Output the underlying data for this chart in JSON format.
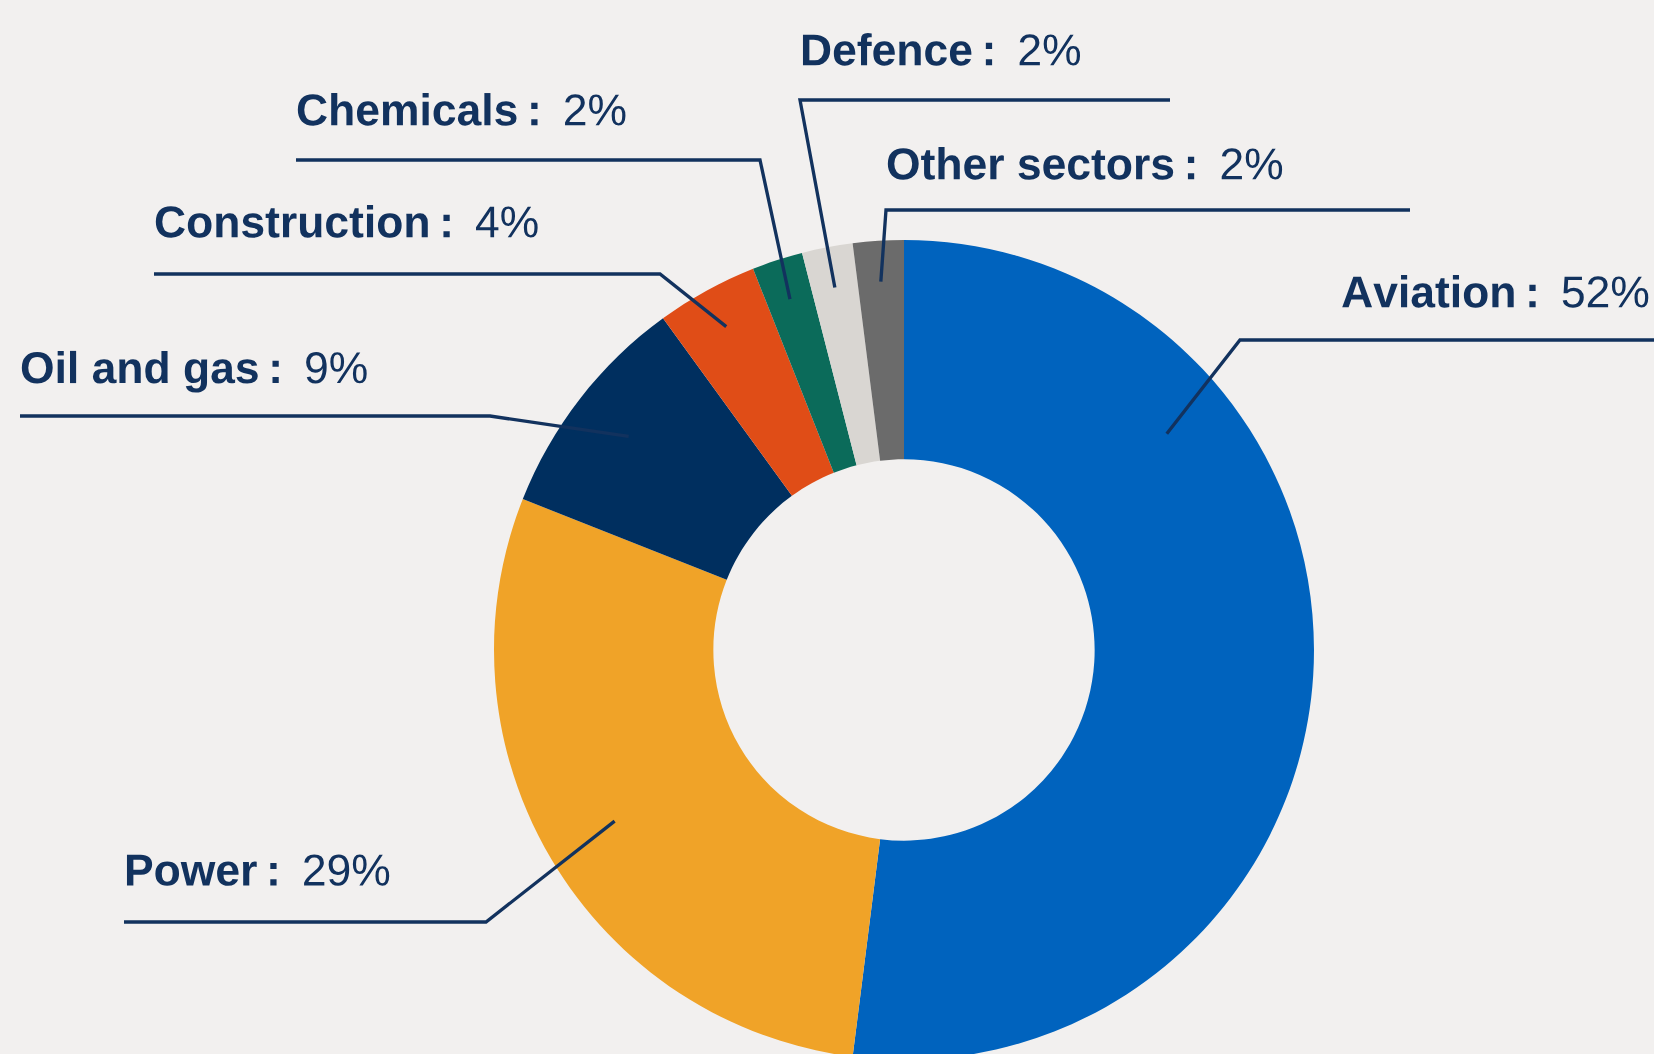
{
  "chart_data": {
    "type": "donut",
    "categories": [
      "Aviation",
      "Power",
      "Oil and gas",
      "Construction",
      "Chemicals",
      "Defence",
      "Other sectors"
    ],
    "values": [
      52,
      29,
      9,
      4,
      2,
      2,
      2
    ],
    "value_labels": [
      "52%",
      "29%",
      "9%",
      "4%",
      "2%",
      "2%",
      "2%"
    ],
    "colors": [
      "#0063be",
      "#f0a328",
      "#002f5f",
      "#e04d17",
      "#0b6b5a",
      "#d9d6d2",
      "#6b6b6b"
    ],
    "legend": false
  }
}
